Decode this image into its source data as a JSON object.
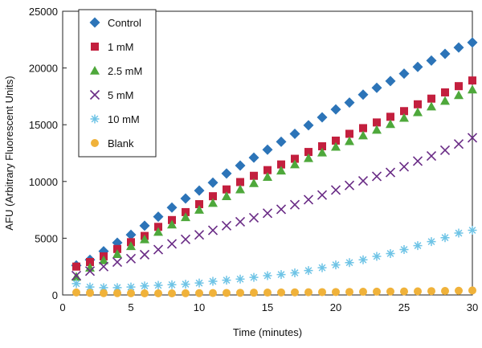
{
  "chart_data": {
    "type": "scatter",
    "title": "",
    "xlabel": "Time (minutes)",
    "ylabel": "AFU (Arbitrary Fluorescent Units)",
    "xlim": [
      0,
      30
    ],
    "ylim": [
      0,
      25000
    ],
    "xticks": [
      "0",
      "5",
      "10",
      "15",
      "20",
      "25",
      "30"
    ],
    "yticks": [
      "0",
      "5000",
      "10000",
      "15000",
      "20000",
      "25000"
    ],
    "grid": false,
    "legend_position": "top-left",
    "x": [
      1,
      2,
      3,
      4,
      5,
      6,
      7,
      8,
      9,
      10,
      11,
      12,
      13,
      14,
      15,
      16,
      17,
      18,
      19,
      20,
      21,
      22,
      23,
      24,
      25,
      26,
      27,
      28,
      29,
      30
    ],
    "series": [
      {
        "name": "Control",
        "marker": "diamond",
        "color": "#2c74b8",
        "values": [
          2600,
          3100,
          3850,
          4600,
          5300,
          6100,
          6900,
          7700,
          8500,
          9200,
          9900,
          10700,
          11400,
          12100,
          12800,
          13500,
          14200,
          14950,
          15650,
          16350,
          16950,
          17650,
          18250,
          18850,
          19500,
          20100,
          20650,
          21250,
          21800,
          22250
        ]
      },
      {
        "name": "1 mM",
        "marker": "square",
        "color": "#c31f3e",
        "values": [
          2500,
          2900,
          3400,
          4050,
          4650,
          5200,
          6000,
          6600,
          7300,
          8000,
          8700,
          9300,
          9950,
          10500,
          11000,
          11500,
          12000,
          12600,
          13100,
          13600,
          14200,
          14700,
          15200,
          15700,
          16200,
          16800,
          17300,
          17850,
          18400,
          18900
        ]
      },
      {
        "name": "2.5 mM",
        "marker": "triangle",
        "color": "#4ea83b",
        "values": [
          1600,
          2400,
          3050,
          3600,
          4300,
          4900,
          5550,
          6200,
          6850,
          7500,
          8100,
          8700,
          9300,
          9850,
          10400,
          10950,
          11500,
          12050,
          12550,
          13050,
          13550,
          14050,
          14550,
          15050,
          15600,
          16100,
          16600,
          17100,
          17600,
          18100
        ]
      },
      {
        "name": "5 mM",
        "marker": "x",
        "color": "#6a2c86",
        "values": [
          1700,
          2100,
          2500,
          2900,
          3200,
          3550,
          4000,
          4500,
          4900,
          5300,
          5700,
          6100,
          6450,
          6800,
          7200,
          7550,
          7950,
          8400,
          8800,
          9250,
          9650,
          10050,
          10450,
          10800,
          11300,
          11800,
          12250,
          12750,
          13300,
          13850
        ]
      },
      {
        "name": "10 mM",
        "marker": "asterisk",
        "color": "#6fc4e6",
        "values": [
          1000,
          700,
          650,
          650,
          700,
          800,
          850,
          900,
          950,
          1050,
          1200,
          1300,
          1400,
          1550,
          1700,
          1800,
          1950,
          2150,
          2400,
          2650,
          2850,
          3100,
          3400,
          3650,
          4000,
          4350,
          4700,
          5050,
          5450,
          5700
        ]
      },
      {
        "name": "Blank",
        "marker": "circle",
        "color": "#f0b23a",
        "values": [
          220,
          180,
          160,
          160,
          150,
          140,
          140,
          140,
          150,
          160,
          170,
          180,
          190,
          200,
          210,
          220,
          230,
          240,
          250,
          260,
          270,
          280,
          290,
          300,
          310,
          320,
          340,
          350,
          370,
          400
        ]
      }
    ]
  }
}
